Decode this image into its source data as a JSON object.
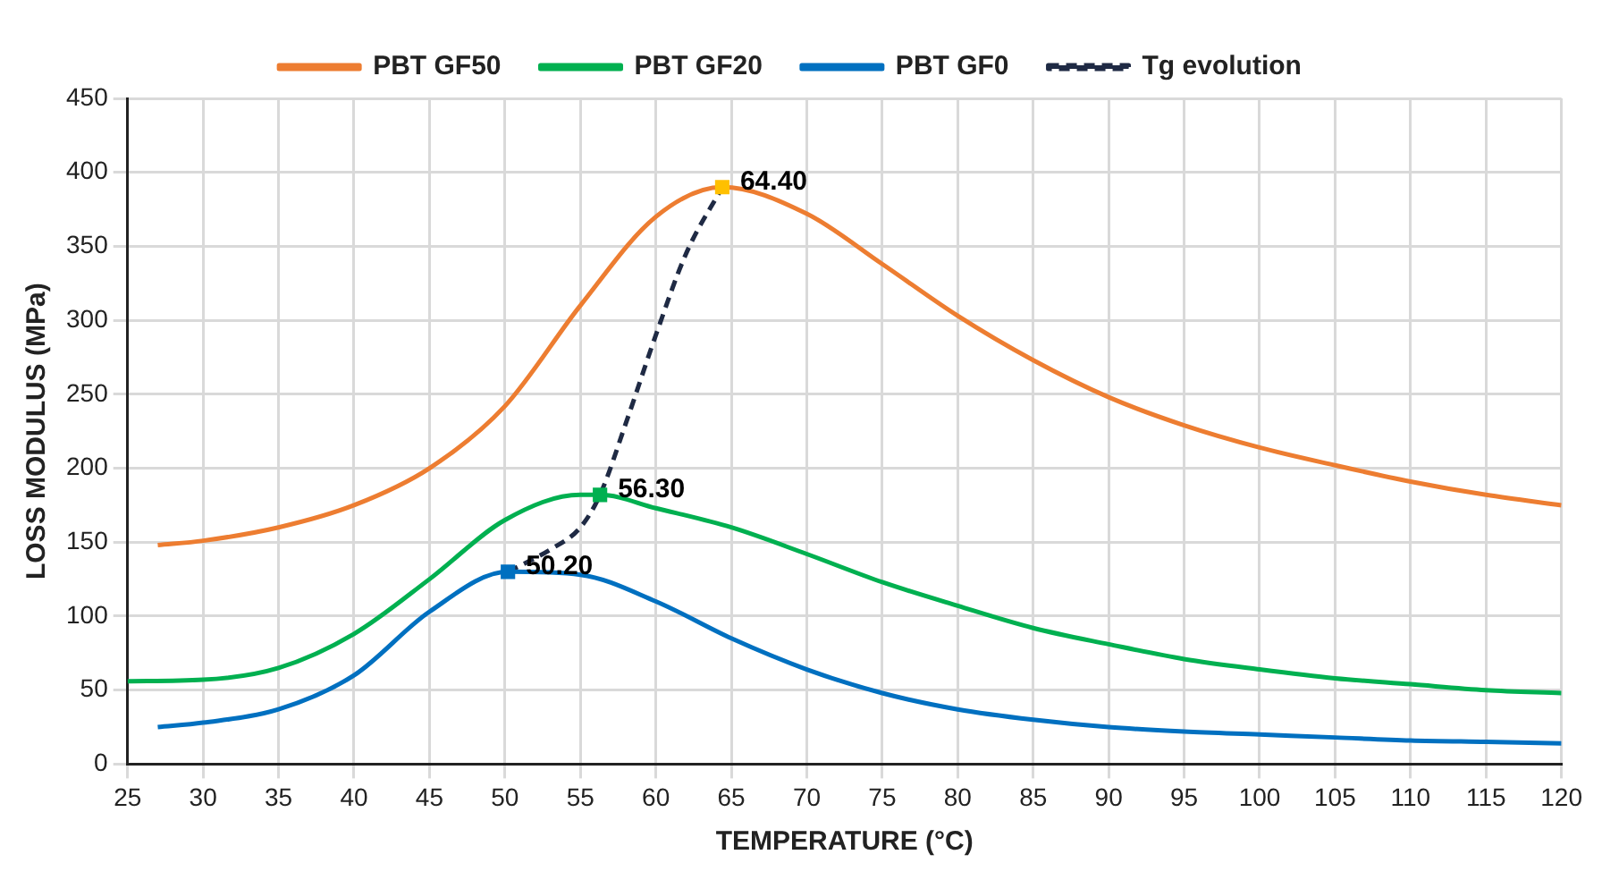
{
  "chart_data": {
    "type": "line",
    "xlabel": "TEMPERATURE (°C)",
    "ylabel": "LOSS MODULUS (MPa)",
    "xlim": [
      25,
      120
    ],
    "xticks": [
      25,
      30,
      35,
      40,
      45,
      50,
      55,
      60,
      65,
      70,
      75,
      80,
      85,
      90,
      95,
      100,
      105,
      110,
      115,
      120
    ],
    "ylim": [
      0,
      450
    ],
    "yticks": [
      0,
      50,
      100,
      150,
      200,
      250,
      300,
      350,
      400,
      450
    ],
    "grid": true,
    "legend": "top",
    "marker": "none",
    "line_style": "solid",
    "series": [
      {
        "name": "PBT GF50",
        "color": "#ed7d31",
        "x": [
          27,
          30,
          35,
          40,
          45,
          50,
          55,
          60,
          64.4,
          70,
          75,
          80,
          85,
          90,
          95,
          100,
          105,
          110,
          115,
          120
        ],
        "values": [
          148,
          151,
          160,
          175,
          200,
          242,
          310,
          370,
          390,
          372,
          338,
          303,
          273,
          248,
          229,
          214,
          202,
          191,
          182,
          175
        ]
      },
      {
        "name": "PBT GF20",
        "color": "#00b050",
        "x": [
          25,
          30,
          35,
          40,
          45,
          50,
          55,
          56.3,
          60,
          65,
          70,
          75,
          80,
          85,
          90,
          95,
          100,
          105,
          110,
          115,
          120
        ],
        "values": [
          56,
          57,
          65,
          88,
          125,
          165,
          182,
          182,
          173,
          160,
          142,
          123,
          107,
          92,
          81,
          71,
          64,
          58,
          54,
          50,
          48
        ]
      },
      {
        "name": "PBT GF0",
        "color": "#0070c0",
        "x": [
          27,
          30,
          35,
          40,
          45,
          50.2,
          55,
          60,
          65,
          70,
          75,
          80,
          85,
          90,
          95,
          100,
          105,
          110,
          115,
          120
        ],
        "values": [
          25,
          28,
          37,
          60,
          103,
          130,
          128,
          110,
          85,
          64,
          48,
          37,
          30,
          25,
          22,
          20,
          18,
          16,
          15,
          14
        ]
      },
      {
        "name": "Tg evolution",
        "color": "#1f2a44",
        "line_style": "dashed",
        "x": [
          50.2,
          53,
          55,
          56.3,
          58,
          60,
          62,
          64.4
        ],
        "values": [
          130,
          145,
          160,
          182,
          230,
          290,
          345,
          390
        ]
      },
      {
        "type": "scatter",
        "marker": "square",
        "colors": [
          "#0070c0",
          "#00b050",
          "#ffc000"
        ],
        "x": [
          50.2,
          56.3,
          64.4
        ],
        "values": [
          130,
          182,
          390
        ]
      }
    ],
    "annotations": [
      {
        "text": "50.20",
        "x": 50.2,
        "y": 130
      },
      {
        "text": "56.30",
        "x": 56.3,
        "y": 182
      },
      {
        "text": "64.40",
        "x": 64.4,
        "y": 390
      }
    ]
  }
}
